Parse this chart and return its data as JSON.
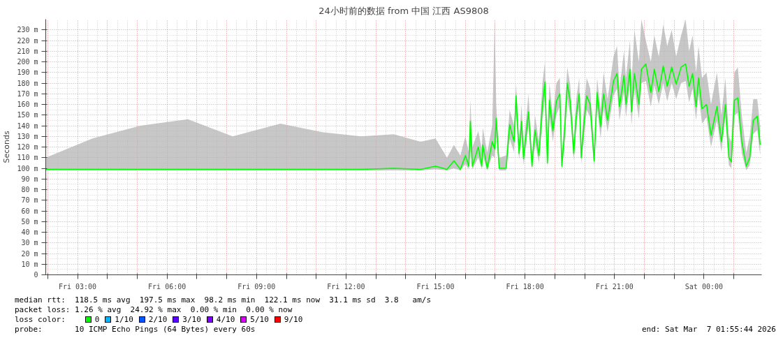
{
  "chart_data": {
    "type": "line",
    "title": "24小时前的数据 from 中国 江西 AS9808",
    "ylabel": "Seconds",
    "xlim": [
      "2026-03-06T01:56",
      "2026-03-07T01:56"
    ],
    "xticks": [
      {
        "value": "2026-03-06T02:00",
        "label": null
      },
      {
        "value": "2026-03-06T03:00",
        "label": "Fri 03:00"
      },
      {
        "value": "2026-03-06T04:00",
        "label": null
      },
      {
        "value": "2026-03-06T05:00",
        "label": null
      },
      {
        "value": "2026-03-06T06:00",
        "label": "Fri 06:00"
      },
      {
        "value": "2026-03-06T07:00",
        "label": null
      },
      {
        "value": "2026-03-06T08:00",
        "label": null
      },
      {
        "value": "2026-03-06T09:00",
        "label": "Fri 09:00"
      },
      {
        "value": "2026-03-06T10:00",
        "label": null
      },
      {
        "value": "2026-03-06T11:00",
        "label": null
      },
      {
        "value": "2026-03-06T12:00",
        "label": "Fri 12:00"
      },
      {
        "value": "2026-03-06T13:00",
        "label": null
      },
      {
        "value": "2026-03-06T14:00",
        "label": null
      },
      {
        "value": "2026-03-06T15:00",
        "label": "Fri 15:00"
      },
      {
        "value": "2026-03-06T16:00",
        "label": null
      },
      {
        "value": "2026-03-06T17:00",
        "label": null
      },
      {
        "value": "2026-03-06T18:00",
        "label": "Fri 18:00"
      },
      {
        "value": "2026-03-06T19:00",
        "label": null
      },
      {
        "value": "2026-03-06T20:00",
        "label": null
      },
      {
        "value": "2026-03-06T21:00",
        "label": "Fri 21:00"
      },
      {
        "value": "2026-03-06T22:00",
        "label": null
      },
      {
        "value": "2026-03-06T23:00",
        "label": null
      },
      {
        "value": "2026-03-07T00:00",
        "label": "Sat 00:00"
      },
      {
        "value": "2026-03-07T01:00",
        "label": null
      }
    ],
    "ylim": [
      0,
      240
    ],
    "yticks": [
      0,
      {
        "value": 10,
        "label": "10 m"
      },
      {
        "value": 20,
        "label": "20 m"
      },
      {
        "value": 30,
        "label": "30 m"
      },
      {
        "value": 40,
        "label": "40 m"
      },
      {
        "value": 50,
        "label": "50 m"
      },
      {
        "value": 60,
        "label": "60 m"
      },
      {
        "value": 70,
        "label": "70 m"
      },
      {
        "value": 80,
        "label": "80 m"
      },
      {
        "value": 90,
        "label": "90 m"
      },
      {
        "value": 100,
        "label": "100 m"
      },
      {
        "value": 110,
        "label": "110 m"
      },
      {
        "value": 120,
        "label": "120 m"
      },
      {
        "value": 130,
        "label": "130 m"
      },
      {
        "value": 140,
        "label": "140 m"
      },
      {
        "value": 150,
        "label": "150 m"
      },
      {
        "value": 160,
        "label": "160 m"
      },
      {
        "value": 170,
        "label": "170 m"
      },
      {
        "value": 180,
        "label": "180 m"
      },
      {
        "value": 190,
        "label": "190 m"
      },
      {
        "value": 200,
        "label": "200 m"
      },
      {
        "value": 210,
        "label": "210 m"
      },
      {
        "value": 220,
        "label": "220 m"
      },
      {
        "value": 230,
        "label": "230 m"
      }
    ],
    "grid": true,
    "legend": "bottom",
    "series": [
      {
        "name": "0",
        "color": "#00ff00",
        "x": [
          "2026-03-06T01:56",
          "2026-03-06T03:30",
          "2026-03-06T05:06",
          "2026-03-06T06:42",
          "2026-03-06T08:12",
          "2026-03-06T09:48",
          "2026-03-06T11:12",
          "2026-03-06T12:30",
          "2026-03-06T13:36",
          "2026-03-06T14:30",
          "2026-03-06T15:00",
          "2026-03-06T15:23",
          "2026-03-06T15:37",
          "2026-03-06T15:50",
          "2026-03-06T16:00",
          "2026-03-06T16:07",
          "2026-03-06T16:10",
          "2026-03-06T16:14",
          "2026-03-06T16:26",
          "2026-03-06T16:33",
          "2026-03-06T16:35",
          "2026-03-06T16:44",
          "2026-03-06T16:54",
          "2026-03-06T16:59",
          "2026-03-06T17:02",
          "2026-03-06T17:08",
          "2026-03-06T17:22",
          "2026-03-06T17:29",
          "2026-03-06T17:38",
          "2026-03-06T17:42",
          "2026-03-06T17:48",
          "2026-03-06T17:53",
          "2026-03-06T17:57",
          "2026-03-06T18:07",
          "2026-03-06T18:14",
          "2026-03-06T18:20",
          "2026-03-06T18:28",
          "2026-03-06T18:35",
          "2026-03-06T18:40",
          "2026-03-06T18:45",
          "2026-03-06T18:49",
          "2026-03-06T18:56",
          "2026-03-06T19:03",
          "2026-03-06T19:10",
          "2026-03-06T19:14",
          "2026-03-06T19:19",
          "2026-03-06T19:25",
          "2026-03-06T19:31",
          "2026-03-06T19:38",
          "2026-03-06T19:43",
          "2026-03-06T19:49",
          "2026-03-06T19:53",
          "2026-03-06T19:59",
          "2026-03-06T20:04",
          "2026-03-06T20:11",
          "2026-03-06T20:19",
          "2026-03-06T20:25",
          "2026-03-06T20:32",
          "2026-03-06T20:38",
          "2026-03-06T20:46",
          "2026-03-06T20:58",
          "2026-03-06T21:05",
          "2026-03-06T21:10",
          "2026-03-06T21:19",
          "2026-03-06T21:23",
          "2026-03-06T21:31",
          "2026-03-06T21:34",
          "2026-03-06T21:40",
          "2026-03-06T21:49",
          "2026-03-06T21:54",
          "2026-03-06T22:03",
          "2026-03-06T22:13",
          "2026-03-06T22:20",
          "2026-03-06T22:29",
          "2026-03-06T22:38",
          "2026-03-06T22:46",
          "2026-03-06T22:55",
          "2026-03-06T23:04",
          "2026-03-06T23:14",
          "2026-03-06T23:23",
          "2026-03-06T23:30",
          "2026-03-06T23:37",
          "2026-03-06T23:44",
          "2026-03-06T23:49",
          "2026-03-06T23:56",
          "2026-03-07T00:05",
          "2026-03-07T00:14",
          "2026-03-07T00:26",
          "2026-03-07T00:35",
          "2026-03-07T00:43",
          "2026-03-07T00:50",
          "2026-03-07T00:55",
          "2026-03-07T01:01",
          "2026-03-07T01:08",
          "2026-03-07T01:16",
          "2026-03-07T01:25",
          "2026-03-07T01:32",
          "2026-03-07T01:39",
          "2026-03-07T01:47",
          "2026-03-07T01:53"
        ],
        "values": [
          99,
          99,
          99,
          99,
          99,
          99,
          99,
          99,
          100,
          99,
          102,
          99,
          107,
          99,
          112,
          102,
          144,
          102,
          120,
          102,
          122,
          100,
          125,
          118,
          147,
          100,
          100,
          141,
          125,
          168,
          114,
          144,
          109,
          153,
          102,
          136,
          112,
          160,
          181,
          105,
          164,
          135,
          163,
          170,
          102,
          130,
          180,
          162,
          114,
          150,
          170,
          110,
          144,
          168,
          160,
          107,
          171,
          139,
          170,
          145,
          182,
          189,
          158,
          187,
          160,
          193,
          153,
          189,
          160,
          193,
          198,
          171,
          193,
          172,
          196,
          177,
          195,
          179,
          195,
          198,
          177,
          189,
          158,
          185,
          156,
          160,
          131,
          158,
          125,
          160,
          110,
          106,
          164,
          166,
          125,
          102,
          110,
          145,
          149,
          122
        ],
        "lower": [
          98,
          98,
          98,
          98,
          98,
          98,
          98,
          98,
          98,
          98,
          99,
          98,
          100,
          98,
          104,
          99,
          120,
          99,
          110,
          99,
          112,
          98,
          112,
          110,
          130,
          98,
          98,
          128,
          115,
          150,
          108,
          130,
          103,
          140,
          99,
          125,
          105,
          145,
          165,
          100,
          150,
          125,
          150,
          158,
          99,
          120,
          165,
          150,
          107,
          138,
          158,
          104,
          132,
          155,
          148,
          101,
          158,
          128,
          158,
          134,
          168,
          175,
          145,
          172,
          148,
          178,
          140,
          175,
          146,
          180,
          182,
          158,
          178,
          160,
          180,
          163,
          180,
          165,
          180,
          182,
          162,
          175,
          145,
          170,
          142,
          148,
          120,
          145,
          115,
          148,
          103,
          100,
          150,
          152,
          114,
          98,
          103,
          132,
          136,
          112
        ],
        "upper": [
          110,
          128,
          140,
          146,
          130,
          142,
          134,
          130,
          132,
          125,
          128,
          110,
          122,
          112,
          130,
          115,
          165,
          120,
          135,
          118,
          138,
          115,
          140,
          240,
          160,
          110,
          112,
          155,
          140,
          180,
          125,
          160,
          120,
          170,
          112,
          150,
          125,
          180,
          200,
          120,
          180,
          150,
          180,
          185,
          115,
          145,
          195,
          178,
          125,
          165,
          185,
          122,
          160,
          185,
          175,
          120,
          185,
          155,
          190,
          165,
          205,
          215,
          175,
          210,
          185,
          220,
          180,
          230,
          200,
          240,
          220,
          200,
          225,
          205,
          235,
          215,
          230,
          205,
          225,
          240,
          210,
          225,
          190,
          215,
          185,
          190,
          160,
          190,
          150,
          185,
          130,
          125,
          190,
          195,
          150,
          115,
          130,
          165,
          165,
          140
        ]
      },
      {
        "name": "1/10",
        "color": "#00b8ff"
      },
      {
        "name": "2/10",
        "color": "#0059ff"
      },
      {
        "name": "3/10",
        "color": "#5e00ff"
      },
      {
        "name": "4/10",
        "color": "#7e00ff"
      },
      {
        "name": "5/10",
        "color": "#dd00ff"
      },
      {
        "name": "9/10",
        "color": "#ff0000"
      }
    ],
    "annotations": [
      "median rtt:  118.5 ms avg  197.5 ms max  98.2 ms min  122.1 ms now  31.1 ms sd  3.8   am/s",
      "packet loss: 1.26 % avg  24.92 % max  0.00 % min  0.00 % now",
      "loss color:",
      "probe:       10 ICMP Echo Pings (64 Bytes) every 60s",
      "end: Sat Mar  7 01:55:44 2026"
    ]
  }
}
